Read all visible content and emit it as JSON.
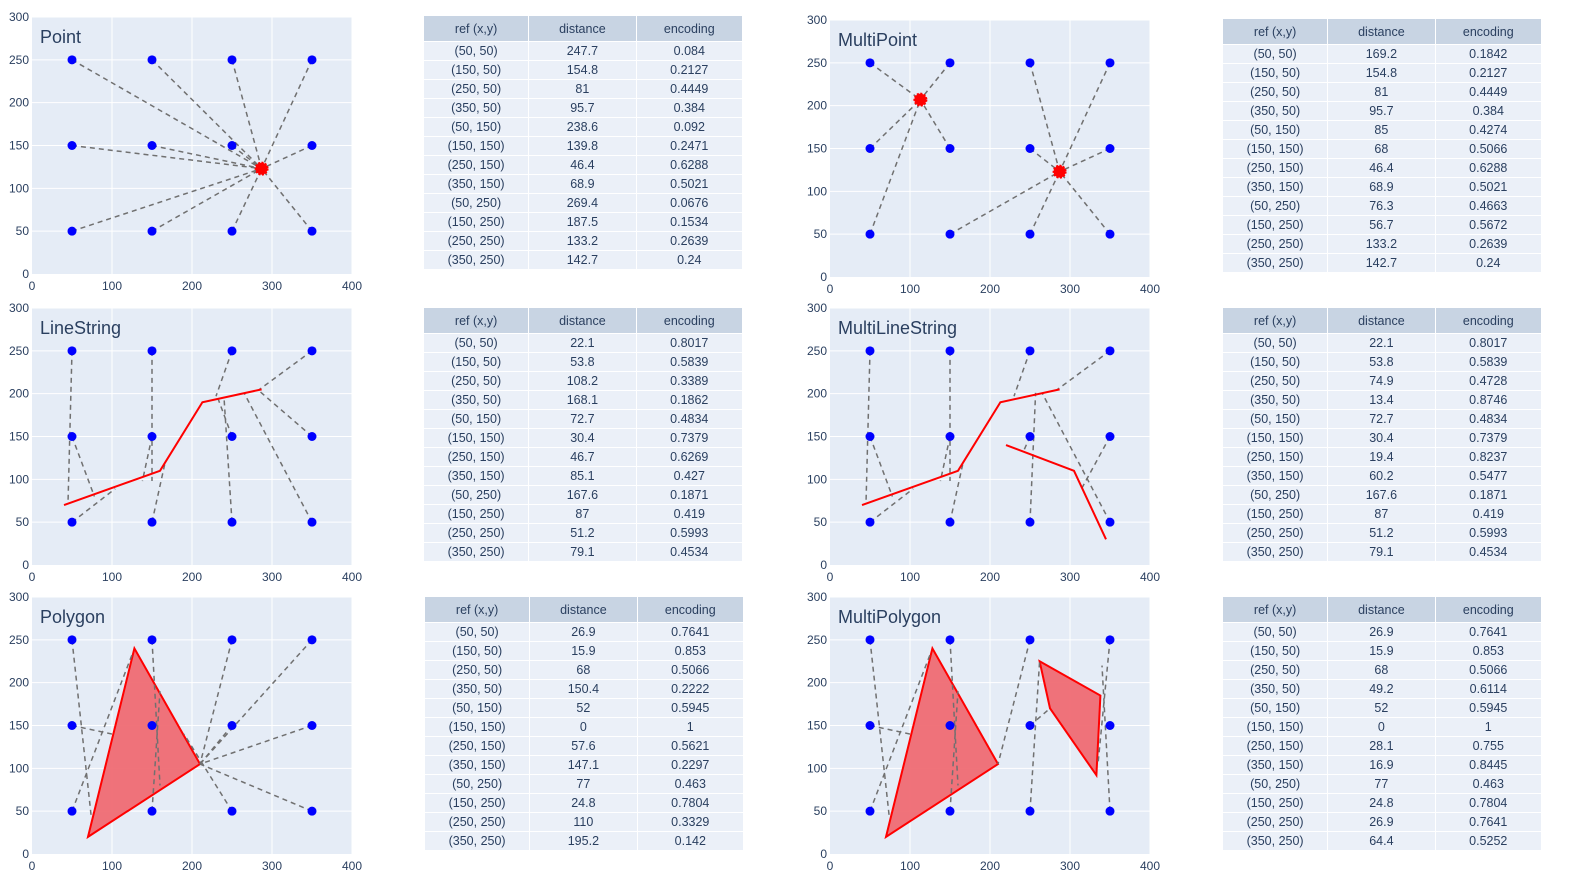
{
  "colors": {
    "plot_bg": "#e5ecf6",
    "grid": "#ffffff",
    "point": "#0000ff",
    "shape": "#ff0000",
    "shape_fill": "#ef6b73",
    "dash": "#707070",
    "tick": "#2a3f5f"
  },
  "table_headers": [
    "ref (x,y)",
    "distance",
    "encoding"
  ],
  "ref_points": [
    "(50, 50)",
    "(150, 50)",
    "(250, 50)",
    "(350, 50)",
    "(50, 150)",
    "(150, 150)",
    "(250, 150)",
    "(350, 150)",
    "(50, 250)",
    "(150, 250)",
    "(250, 250)",
    "(350, 250)"
  ],
  "chart_data": [
    {
      "type": "scatter",
      "title": "Point",
      "xlim": [
        0,
        400
      ],
      "ylim": [
        0,
        300
      ],
      "xticks": [
        0,
        100,
        200,
        300,
        400
      ],
      "yticks": [
        0,
        50,
        100,
        150,
        200,
        250,
        300
      ],
      "ref_x": [
        50,
        150,
        250,
        350,
        50,
        150,
        250,
        350,
        50,
        150,
        250,
        350
      ],
      "ref_y": [
        250,
        250,
        250,
        250,
        150,
        150,
        150,
        150,
        50,
        50,
        50,
        50
      ],
      "geometry": {
        "kind": "points",
        "coords": [
          [
            287,
            123
          ]
        ]
      },
      "nearest": [
        [
          287,
          123
        ],
        [
          287,
          123
        ],
        [
          287,
          123
        ],
        [
          287,
          123
        ],
        [
          287,
          123
        ],
        [
          287,
          123
        ],
        [
          287,
          123
        ],
        [
          287,
          123
        ],
        [
          287,
          123
        ],
        [
          287,
          123
        ],
        [
          287,
          123
        ],
        [
          287,
          123
        ]
      ],
      "table": {
        "distance": [
          "247.7",
          "154.8",
          "81",
          "95.7",
          "238.6",
          "139.8",
          "46.4",
          "68.9",
          "269.4",
          "187.5",
          "133.2",
          "142.7"
        ],
        "encoding": [
          "0.084",
          "0.2127",
          "0.4449",
          "0.384",
          "0.092",
          "0.2471",
          "0.6288",
          "0.5021",
          "0.0676",
          "0.1534",
          "0.2639",
          "0.24"
        ]
      }
    },
    {
      "type": "scatter",
      "title": "MultiPoint",
      "xlim": [
        0,
        400
      ],
      "ylim": [
        0,
        300
      ],
      "xticks": [
        0,
        100,
        200,
        300,
        400
      ],
      "yticks": [
        0,
        50,
        100,
        150,
        200,
        250,
        300
      ],
      "ref_x": [
        50,
        150,
        250,
        350,
        50,
        150,
        250,
        350,
        50,
        150,
        250,
        350
      ],
      "ref_y": [
        250,
        250,
        250,
        250,
        150,
        150,
        150,
        150,
        50,
        50,
        50,
        50
      ],
      "geometry": {
        "kind": "points",
        "coords": [
          [
            113,
            207
          ],
          [
            287,
            123
          ]
        ]
      },
      "nearest": [
        [
          113,
          207
        ],
        [
          113,
          207
        ],
        [
          287,
          123
        ],
        [
          287,
          123
        ],
        [
          113,
          207
        ],
        [
          113,
          207
        ],
        [
          287,
          123
        ],
        [
          287,
          123
        ],
        [
          113,
          207
        ],
        [
          287,
          123
        ],
        [
          287,
          123
        ],
        [
          287,
          123
        ]
      ],
      "table": {
        "distance": [
          "169.2",
          "154.8",
          "81",
          "95.7",
          "85",
          "68",
          "46.4",
          "68.9",
          "76.3",
          "56.7",
          "133.2",
          "142.7"
        ],
        "encoding": [
          "0.1842",
          "0.2127",
          "0.4449",
          "0.384",
          "0.4274",
          "0.5066",
          "0.6288",
          "0.5021",
          "0.4663",
          "0.5672",
          "0.2639",
          "0.24"
        ]
      }
    },
    {
      "type": "scatter",
      "title": "LineString",
      "xlim": [
        0,
        400
      ],
      "ylim": [
        0,
        300
      ],
      "xticks": [
        0,
        100,
        200,
        300,
        400
      ],
      "yticks": [
        0,
        50,
        100,
        150,
        200,
        250,
        300
      ],
      "ref_x": [
        50,
        150,
        250,
        350,
        50,
        150,
        250,
        350,
        50,
        150,
        250,
        350
      ],
      "ref_y": [
        250,
        250,
        250,
        250,
        150,
        150,
        150,
        150,
        50,
        50,
        50,
        50
      ],
      "geometry": {
        "kind": "lines",
        "coords": [
          [
            [
              40,
              70
            ],
            [
              160,
              110
            ],
            [
              213,
              190
            ],
            [
              287,
              205
            ]
          ]
        ]
      },
      "nearest": [
        [
          45,
          72
        ],
        [
          150,
          98
        ],
        [
          230,
          197
        ],
        [
          283,
          204
        ],
        [
          78,
          80
        ],
        [
          138,
          98
        ],
        [
          233,
          193
        ],
        [
          283,
          204
        ],
        [
          104,
          89
        ],
        [
          166,
          118
        ],
        [
          240,
          196
        ],
        [
          265,
          201
        ]
      ],
      "table": {
        "distance": [
          "22.1",
          "53.8",
          "108.2",
          "168.1",
          "72.7",
          "30.4",
          "46.7",
          "85.1",
          "167.6",
          "87",
          "51.2",
          "79.1"
        ],
        "encoding": [
          "0.8017",
          "0.5839",
          "0.3389",
          "0.1862",
          "0.4834",
          "0.7379",
          "0.6269",
          "0.427",
          "0.1871",
          "0.419",
          "0.5993",
          "0.4534"
        ]
      }
    },
    {
      "type": "scatter",
      "title": "MultiLineString",
      "xlim": [
        0,
        400
      ],
      "ylim": [
        0,
        300
      ],
      "xticks": [
        0,
        100,
        200,
        300,
        400
      ],
      "yticks": [
        0,
        50,
        100,
        150,
        200,
        250,
        300
      ],
      "ref_x": [
        50,
        150,
        250,
        350,
        50,
        150,
        250,
        350,
        50,
        150,
        250,
        350
      ],
      "ref_y": [
        250,
        250,
        250,
        250,
        150,
        150,
        150,
        150,
        50,
        50,
        50,
        50
      ],
      "geometry": {
        "kind": "lines",
        "coords": [
          [
            [
              40,
              70
            ],
            [
              160,
              110
            ],
            [
              213,
              190
            ],
            [
              287,
              205
            ]
          ],
          [
            [
              220,
              140
            ],
            [
              305,
              110
            ],
            [
              345,
              30
            ]
          ]
        ]
      },
      "nearest": [
        [
          45,
          72
        ],
        [
          150,
          98
        ],
        [
          230,
          197
        ],
        [
          283,
          204
        ],
        [
          78,
          80
        ],
        [
          138,
          98
        ],
        [
          242,
          133
        ],
        [
          315,
          90
        ],
        [
          104,
          89
        ],
        [
          166,
          118
        ],
        [
          257,
          201
        ],
        [
          265,
          201
        ]
      ],
      "table": {
        "distance": [
          "22.1",
          "53.8",
          "74.9",
          "13.4",
          "72.7",
          "30.4",
          "19.4",
          "60.2",
          "167.6",
          "87",
          "51.2",
          "79.1"
        ],
        "encoding": [
          "0.8017",
          "0.5839",
          "0.4728",
          "0.8746",
          "0.4834",
          "0.7379",
          "0.8237",
          "0.5477",
          "0.1871",
          "0.419",
          "0.5993",
          "0.4534"
        ]
      }
    },
    {
      "type": "scatter",
      "title": "Polygon",
      "xlim": [
        0,
        400
      ],
      "ylim": [
        0,
        300
      ],
      "xticks": [
        0,
        100,
        200,
        300,
        400
      ],
      "yticks": [
        0,
        50,
        100,
        150,
        200,
        250,
        300
      ],
      "ref_x": [
        50,
        150,
        250,
        350,
        50,
        150,
        250,
        350,
        50,
        150,
        250,
        350
      ],
      "ref_y": [
        250,
        250,
        250,
        250,
        150,
        150,
        150,
        150,
        50,
        50,
        50,
        50
      ],
      "geometry": {
        "kind": "polygons",
        "coords": [
          [
            [
              70,
              20
            ],
            [
              128,
              240
            ],
            [
              210,
              105
            ],
            [
              70,
              20
            ]
          ]
        ]
      },
      "nearest": [
        [
          74,
          44
        ],
        [
          160,
          80
        ],
        [
          210,
          105
        ],
        [
          210,
          105
        ],
        [
          100,
          140
        ],
        [
          150,
          150
        ],
        [
          210,
          105
        ],
        [
          210,
          105
        ],
        [
          126,
          235
        ],
        [
          160,
          190
        ],
        [
          190,
          140
        ],
        [
          210,
          105
        ]
      ],
      "table": {
        "distance": [
          "26.9",
          "15.9",
          "68",
          "150.4",
          "52",
          "0",
          "57.6",
          "147.1",
          "77",
          "24.8",
          "110",
          "195.2"
        ],
        "encoding": [
          "0.7641",
          "0.853",
          "0.5066",
          "0.2222",
          "0.5945",
          "1",
          "0.5621",
          "0.2297",
          "0.463",
          "0.7804",
          "0.3329",
          "0.142"
        ]
      }
    },
    {
      "type": "scatter",
      "title": "MultiPolygon",
      "xlim": [
        0,
        400
      ],
      "ylim": [
        0,
        300
      ],
      "xticks": [
        0,
        100,
        200,
        300,
        400
      ],
      "yticks": [
        0,
        50,
        100,
        150,
        200,
        250,
        300
      ],
      "ref_x": [
        50,
        150,
        250,
        350,
        50,
        150,
        250,
        350,
        50,
        150,
        250,
        350
      ],
      "ref_y": [
        250,
        250,
        250,
        250,
        150,
        150,
        150,
        150,
        50,
        50,
        50,
        50
      ],
      "geometry": {
        "kind": "polygons",
        "coords": [
          [
            [
              70,
              20
            ],
            [
              128,
              240
            ],
            [
              210,
              105
            ],
            [
              70,
              20
            ]
          ],
          [
            [
              262,
              225
            ],
            [
              338,
              185
            ],
            [
              333,
              92
            ],
            [
              275,
              170
            ],
            [
              262,
              225
            ]
          ]
        ]
      },
      "nearest": [
        [
          74,
          44
        ],
        [
          160,
          80
        ],
        [
          210,
          105
        ],
        [
          335,
          105
        ],
        [
          100,
          140
        ],
        [
          150,
          150
        ],
        [
          275,
          170
        ],
        [
          350,
          150
        ],
        [
          126,
          235
        ],
        [
          160,
          190
        ],
        [
          262,
          225
        ],
        [
          340,
          220
        ]
      ],
      "table": {
        "distance": [
          "26.9",
          "15.9",
          "68",
          "49.2",
          "52",
          "0",
          "28.1",
          "16.9",
          "77",
          "24.8",
          "26.9",
          "64.4"
        ],
        "encoding": [
          "0.7641",
          "0.853",
          "0.5066",
          "0.6114",
          "0.5945",
          "1",
          "0.755",
          "0.8445",
          "0.463",
          "0.7804",
          "0.7641",
          "0.5252"
        ]
      }
    }
  ]
}
